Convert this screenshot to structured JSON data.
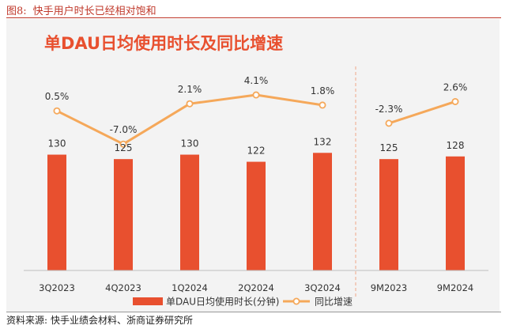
{
  "figure": {
    "label": "图8:",
    "caption": "快手用户时长已经相对饱和"
  },
  "source": {
    "label": "资料来源:",
    "text": "快手业绩会材料、浙商证券研究所"
  },
  "colors": {
    "bar": "#E8502F",
    "line": "#F5A85A",
    "title": "#E8502F",
    "caption": "#c0392b",
    "divider": "#F0B49A"
  },
  "chart_data": {
    "type": "bar",
    "title": "单DAU日均使用时长及同比增速",
    "categories": [
      "3Q2023",
      "4Q2023",
      "1Q2024",
      "2Q2024",
      "3Q2024",
      "9M2023",
      "9M2024"
    ],
    "series": [
      {
        "name": "单DAU日均使用时长(分钟)",
        "type": "bar",
        "values": [
          130,
          125,
          130,
          122,
          132,
          125,
          128
        ],
        "labels": [
          "130",
          "125",
          "130",
          "122",
          "132",
          "125",
          "128"
        ]
      },
      {
        "name": "同比增速",
        "type": "line",
        "values": [
          0.5,
          -7.0,
          2.1,
          4.1,
          1.8,
          -2.3,
          2.6
        ],
        "labels": [
          "0.5%",
          "-7.0%",
          "2.1%",
          "4.1%",
          "1.8%",
          "-2.3%",
          "2.6%"
        ],
        "line_groups": [
          [
            0,
            4
          ],
          [
            5,
            6
          ]
        ]
      }
    ],
    "bar_axis": {
      "ylim": [
        0,
        150
      ]
    },
    "line_axis": {
      "ylim": [
        -20,
        5
      ]
    },
    "divider_after_category_index": 4,
    "legend": {
      "position": "bottom"
    }
  }
}
